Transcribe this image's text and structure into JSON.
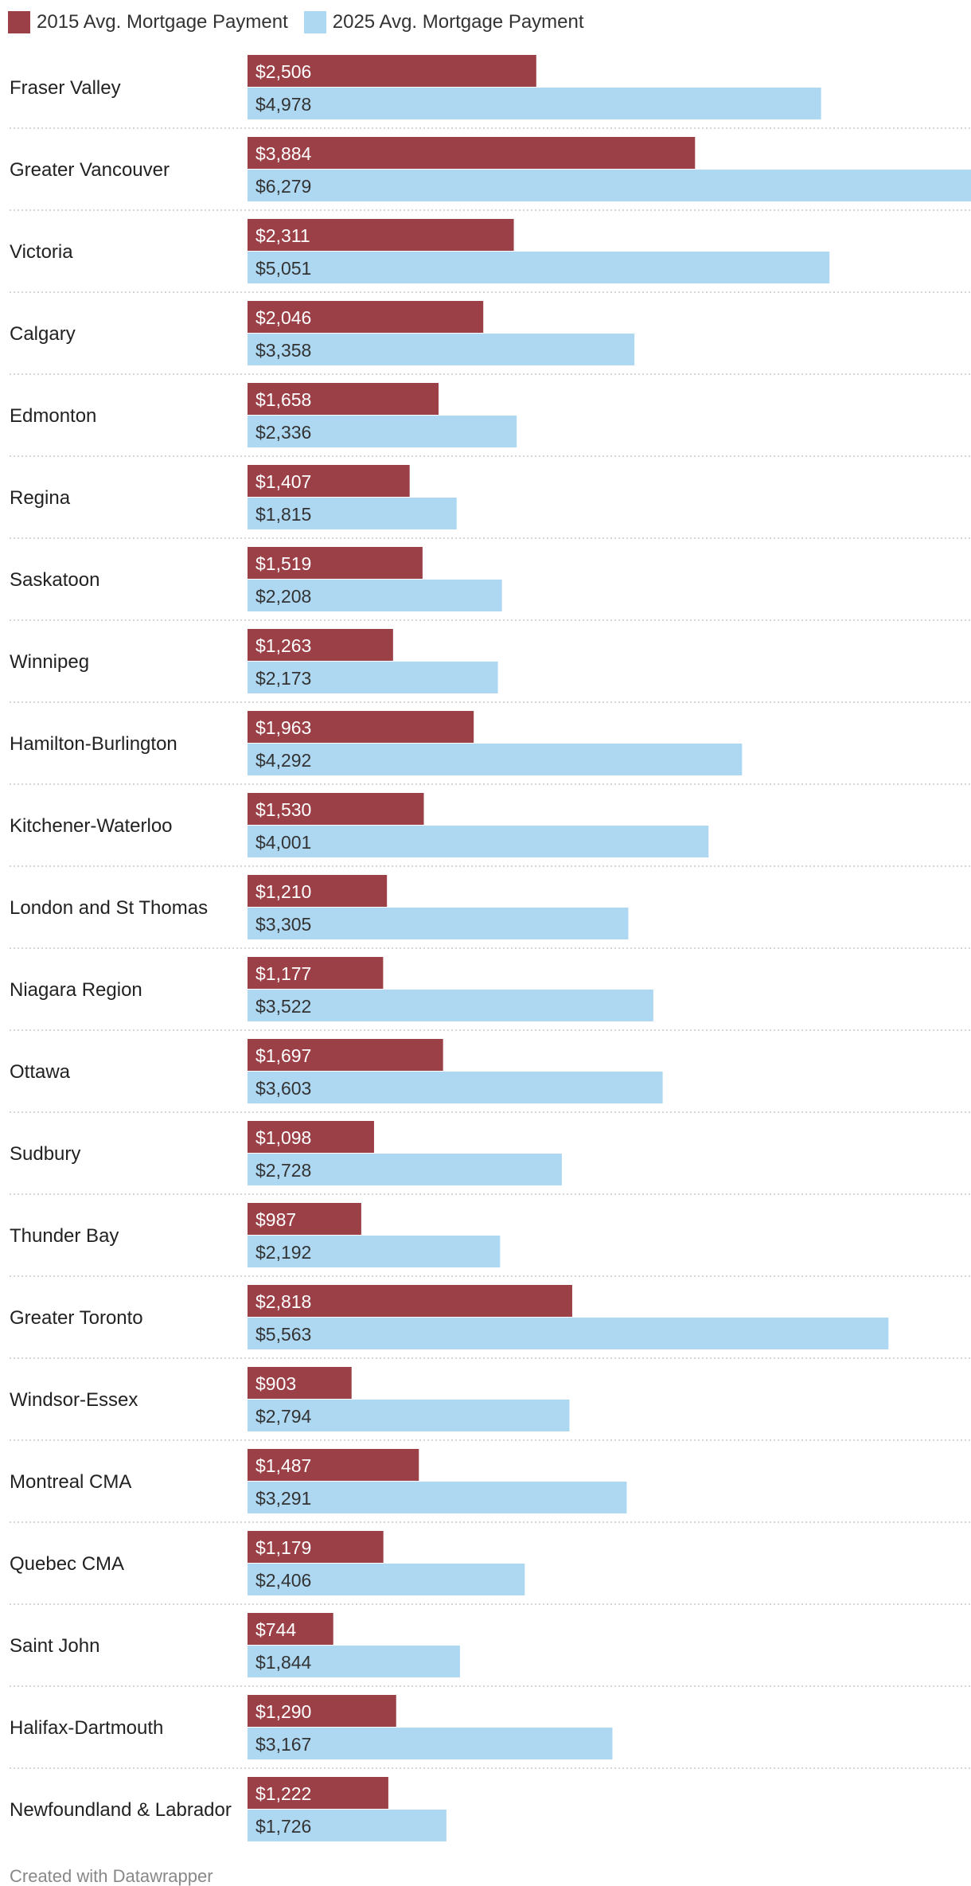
{
  "legend": {
    "series_2015": "2015 Avg. Mortgage Payment",
    "series_2025": "2025 Avg. Mortgage Payment"
  },
  "colors": {
    "series_2015": "#9b4047",
    "series_2025": "#aed8f2"
  },
  "footer": {
    "credit": "Created with Datawrapper"
  },
  "chart_data": {
    "type": "bar",
    "orientation": "horizontal",
    "title": "",
    "xlabel": "",
    "ylabel": "",
    "xlim": [
      0,
      6279
    ],
    "grid": false,
    "legend_position": "top-left",
    "categories": [
      "Fraser Valley",
      "Greater Vancouver",
      "Victoria",
      "Calgary",
      "Edmonton",
      "Regina",
      "Saskatoon",
      "Winnipeg",
      "Hamilton-Burlington",
      "Kitchener-Waterloo",
      "London and St Thomas",
      "Niagara Region",
      "Ottawa",
      "Sudbury",
      "Thunder Bay",
      "Greater Toronto",
      "Windsor-Essex",
      "Montreal CMA",
      "Quebec CMA",
      "Saint John",
      "Halifax-Dartmouth",
      "Newfoundland & Labrador"
    ],
    "series": [
      {
        "name": "2015 Avg. Mortgage Payment",
        "values": [
          2506,
          3884,
          2311,
          2046,
          1658,
          1407,
          1519,
          1263,
          1963,
          1530,
          1210,
          1177,
          1697,
          1098,
          987,
          2818,
          903,
          1487,
          1179,
          744,
          1290,
          1222
        ],
        "labels": [
          "$2,506",
          "$3,884",
          "$2,311",
          "$2,046",
          "$1,658",
          "$1,407",
          "$1,519",
          "$1,263",
          "$1,963",
          "$1,530",
          "$1,210",
          "$1,177",
          "$1,697",
          "$1,098",
          "$987",
          "$2,818",
          "$903",
          "$1,487",
          "$1,179",
          "$744",
          "$1,290",
          "$1,222"
        ]
      },
      {
        "name": "2025 Avg. Mortgage Payment",
        "values": [
          4978,
          6279,
          5051,
          3358,
          2336,
          1815,
          2208,
          2173,
          4292,
          4001,
          3305,
          3522,
          3603,
          2728,
          2192,
          5563,
          2794,
          3291,
          2406,
          1844,
          3167,
          1726
        ],
        "labels": [
          "$4,978",
          "$6,279",
          "$5,051",
          "$3,358",
          "$2,336",
          "$1,815",
          "$2,208",
          "$2,173",
          "$4,292",
          "$4,001",
          "$3,305",
          "$3,522",
          "$3,603",
          "$2,728",
          "$2,192",
          "$5,563",
          "$2,794",
          "$3,291",
          "$2,406",
          "$1,844",
          "$3,167",
          "$1,726"
        ]
      }
    ]
  }
}
